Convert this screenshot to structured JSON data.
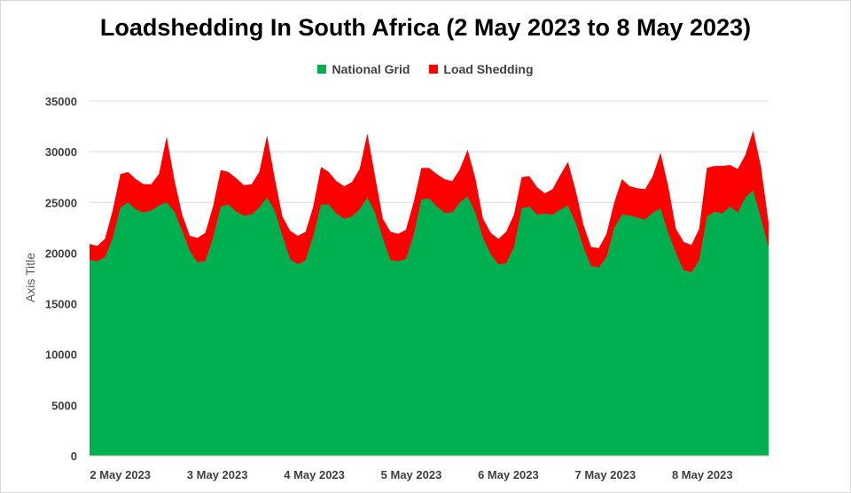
{
  "chart_data": {
    "type": "area",
    "stacked": true,
    "title": "Loadshedding In South Africa (2 May 2023 to 8 May 2023)",
    "xlabel": "",
    "ylabel": "Axis Title",
    "ylim": [
      0,
      35000
    ],
    "yticks": [
      "0",
      "5000",
      "10000",
      "15000",
      "20000",
      "25000",
      "30000",
      "35000"
    ],
    "xtick_labels": [
      "2 May 2023",
      "3 May 2023",
      "4 May 2023",
      "5 May 2023",
      "6 May 2023",
      "7 May 2023",
      "8 May 2023"
    ],
    "grid": "horizontal",
    "legend_position": "top",
    "series": [
      {
        "name": "National Grid",
        "color": "#00b050",
        "values": [
          19300,
          19200,
          19600,
          21500,
          24500,
          25000,
          24300,
          24000,
          24200,
          24700,
          25000,
          24100,
          22200,
          20200,
          19100,
          19200,
          21500,
          24600,
          24800,
          24100,
          23700,
          23800,
          24500,
          25500,
          24200,
          21700,
          19400,
          18900,
          19300,
          21700,
          24800,
          24800,
          23900,
          23400,
          23600,
          24300,
          25500,
          24000,
          21500,
          19300,
          19200,
          19400,
          21800,
          25300,
          25400,
          24600,
          24000,
          24000,
          25000,
          25600,
          24000,
          21500,
          19900,
          18900,
          19000,
          20600,
          24400,
          24600,
          23800,
          23900,
          23800,
          24300,
          24700,
          23000,
          20600,
          18700,
          18600,
          19600,
          22500,
          23800,
          23700,
          23500,
          23300,
          24000,
          24400,
          22000,
          20000,
          18300,
          18100,
          19300,
          23600,
          24100,
          23900,
          24600,
          24000,
          25500,
          26200,
          23500,
          20500
        ],
        "total_values": [
          20900,
          20700,
          21400,
          24200,
          27800,
          28000,
          27300,
          26800,
          26800,
          27800,
          31500,
          27200,
          23800,
          21700,
          21500,
          22000,
          24600,
          28200,
          28000,
          27400,
          26700,
          26800,
          28000,
          31600,
          27400,
          23600,
          22200,
          21700,
          22100,
          24600,
          28500,
          28000,
          27100,
          26600,
          27000,
          28300,
          31800,
          27600,
          23400,
          22100,
          21900,
          22300,
          25000,
          28400,
          28400,
          27800,
          27300,
          27100,
          28300,
          30200,
          27400,
          23400,
          22000,
          21400,
          22100,
          23800,
          27500,
          27600,
          26500,
          25900,
          26300,
          27700,
          29000,
          26200,
          22800,
          20600,
          20500,
          21900,
          25000,
          27300,
          26600,
          26400,
          26300,
          27600,
          29900,
          26600,
          22400,
          21100,
          20800,
          22400,
          28400,
          28600,
          28600,
          28700,
          28300,
          29700,
          32100,
          28600,
          23000
        ]
      },
      {
        "name": "Load Shedding",
        "color": "#ff0000"
      }
    ]
  }
}
